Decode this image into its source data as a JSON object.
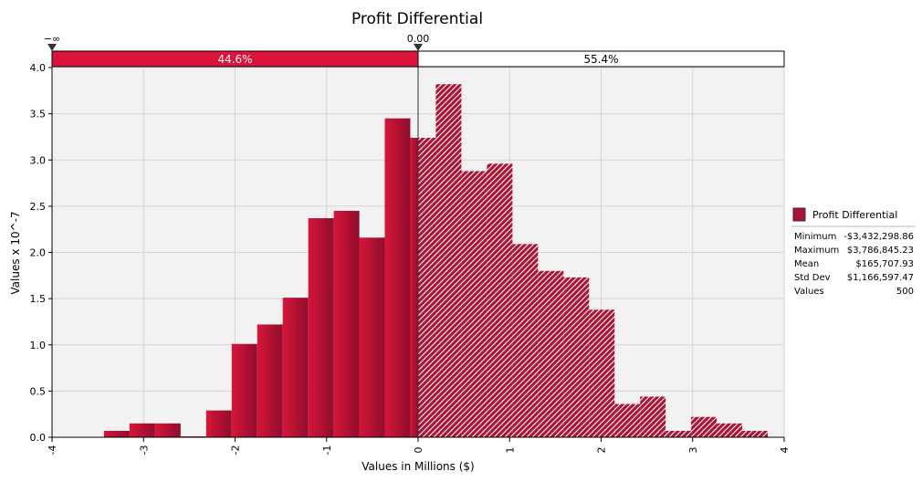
{
  "chart_data": {
    "type": "bar",
    "title": "Profit Differential",
    "xlabel": "Values in Millions ($)",
    "ylabel": "Values x 10^-7",
    "xlim": [
      -4,
      4
    ],
    "ylim": [
      0,
      4.0
    ],
    "xticks": [
      "-4",
      "-3",
      "-2",
      "-1",
      "0",
      "1",
      "2",
      "3",
      "4"
    ],
    "yticks": [
      "0.0",
      "0.5",
      "1.0",
      "1.5",
      "2.0",
      "2.5",
      "3.0",
      "3.5",
      "4.0"
    ],
    "grid": true,
    "bin_width": 0.2789,
    "bins": [
      {
        "x0": -3.432,
        "y": 0.07
      },
      {
        "x0": -3.153,
        "y": 0.15
      },
      {
        "x0": -2.874,
        "y": 0.15
      },
      {
        "x0": -2.595,
        "y": 0.01
      },
      {
        "x0": -2.316,
        "y": 0.29
      },
      {
        "x0": -2.037,
        "y": 1.01
      },
      {
        "x0": -1.758,
        "y": 1.22
      },
      {
        "x0": -1.479,
        "y": 1.51
      },
      {
        "x0": -1.2,
        "y": 2.37
      },
      {
        "x0": -0.921,
        "y": 2.45
      },
      {
        "x0": -0.643,
        "y": 2.16
      },
      {
        "x0": -0.364,
        "y": 3.45
      },
      {
        "x0": -0.085,
        "y": 3.24
      },
      {
        "x0": 0.194,
        "y": 3.82
      },
      {
        "x0": 0.473,
        "y": 2.88
      },
      {
        "x0": 0.752,
        "y": 2.96
      },
      {
        "x0": 1.031,
        "y": 2.09
      },
      {
        "x0": 1.31,
        "y": 1.8
      },
      {
        "x0": 1.589,
        "y": 1.73
      },
      {
        "x0": 1.868,
        "y": 1.38
      },
      {
        "x0": 2.147,
        "y": 0.36
      },
      {
        "x0": 2.426,
        "y": 0.44
      },
      {
        "x0": 2.705,
        "y": 0.07
      },
      {
        "x0": 2.984,
        "y": 0.22
      },
      {
        "x0": 3.263,
        "y": 0.15
      },
      {
        "x0": 3.542,
        "y": 0.07
      }
    ],
    "delimiter": {
      "left_label": "−∞",
      "center_label": "0.00",
      "left_percent": "44.6%",
      "right_percent": "55.4%",
      "split_value": 0,
      "left_fraction": 0.446
    },
    "legend": {
      "placement": "right",
      "series_name": "Profit Differential",
      "stats": [
        {
          "label": "Minimum",
          "value": "-$3,432,298.86"
        },
        {
          "label": "Maximum",
          "value": "$3,786,845.23"
        },
        {
          "label": "Mean",
          "value": "$165,707.93"
        },
        {
          "label": "Std Dev",
          "value": "$1,166,597.47"
        },
        {
          "label": "Values",
          "value": "500"
        }
      ]
    },
    "colors": {
      "bar_dark": "#8f0d2c",
      "bar_bright": "#d61539",
      "hatch": "#ffffff",
      "plot_bg": "#f2f2f2",
      "grid": "#d4d4d4",
      "delimiter_fill": "#dc143c"
    }
  }
}
